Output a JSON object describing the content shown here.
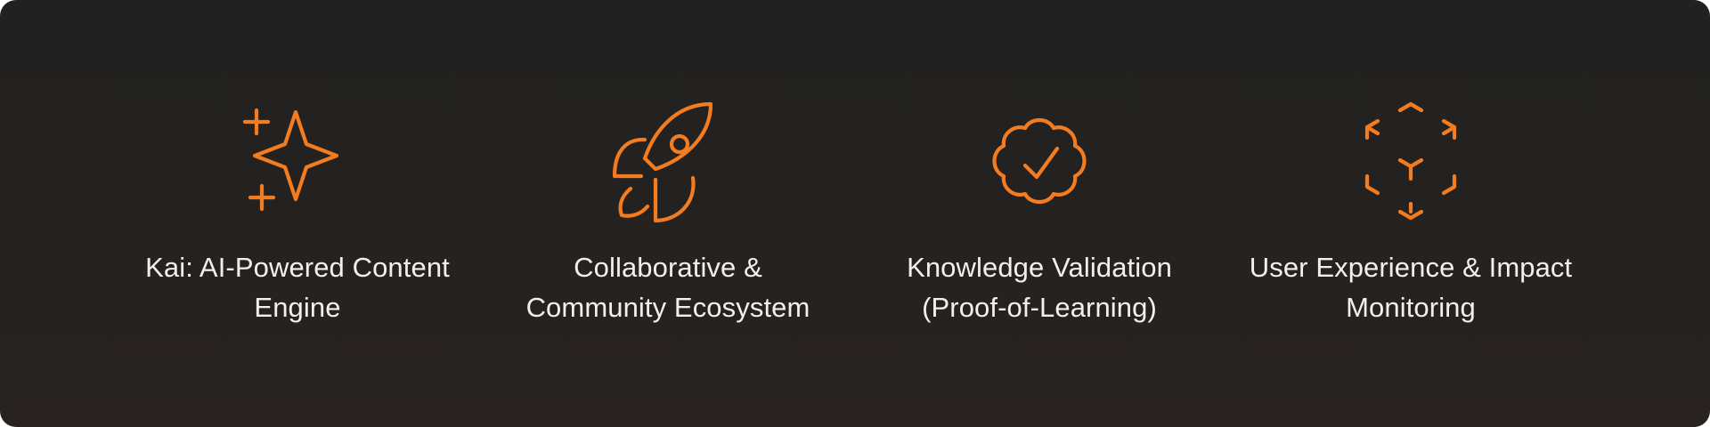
{
  "accent_color": "#F47C20",
  "background_color": "#242120",
  "features": [
    {
      "icon": "sparkles-icon",
      "label": "Kai: AI-Powered Content\nEngine"
    },
    {
      "icon": "rocket-icon",
      "label": "Collaborative &\nCommunity Ecosystem"
    },
    {
      "icon": "badge-check-icon",
      "label": "Knowledge Validation\n(Proof-of-Learning)"
    },
    {
      "icon": "box-dashed-icon",
      "label": "User Experience & Impact\nMonitoring"
    }
  ]
}
